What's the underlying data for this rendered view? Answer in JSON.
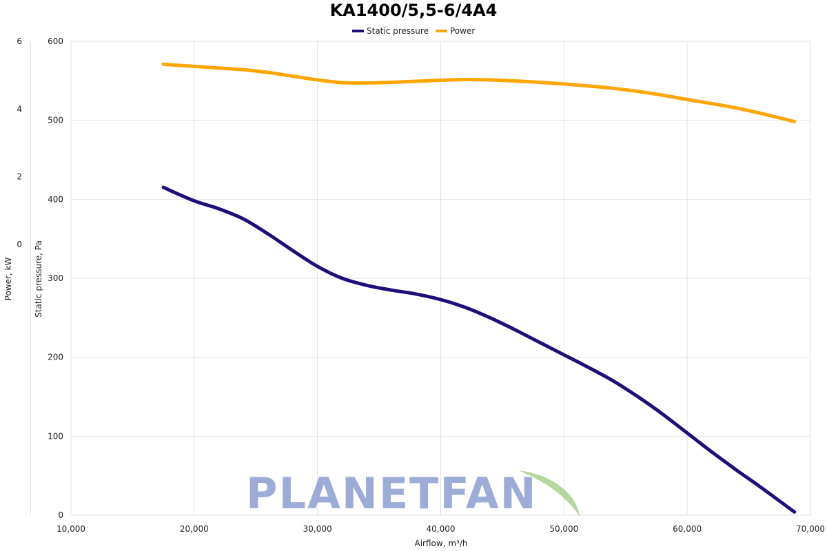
{
  "chart_data": {
    "type": "line",
    "title": "KA1400/5,5-6/4A4",
    "xlabel": "Airflow, m³/h",
    "ylabel_left": "Static pressure, Pa",
    "ylabel_right": "Power, kW",
    "xlim": [
      10000,
      70000
    ],
    "ylim_pressure": [
      0,
      600
    ],
    "ylim_power": [
      -8,
      6
    ],
    "x_ticks": [
      10000,
      20000,
      30000,
      40000,
      50000,
      60000,
      70000
    ],
    "x_tick_labels": [
      "10,000",
      "20,000",
      "30,000",
      "40,000",
      "50,000",
      "60,000",
      "70,000"
    ],
    "pressure_ticks": [
      0,
      100,
      200,
      300,
      400,
      500,
      600
    ],
    "pressure_tick_labels": [
      "0",
      "100",
      "200",
      "300",
      "400",
      "500",
      "600"
    ],
    "power_ticks": [
      0,
      2,
      4,
      6
    ],
    "power_tick_labels": [
      "0",
      "2",
      "4",
      "6"
    ],
    "grid": true,
    "legend_position": "top-center",
    "series": [
      {
        "name": "Static pressure",
        "axis": "pressure",
        "color": "#1d0f7a",
        "x": [
          17500,
          20000,
          22000,
          24000,
          26000,
          28000,
          30000,
          32000,
          34000,
          36000,
          38000,
          40000,
          42000,
          44000,
          46000,
          48000,
          50000,
          52000,
          54000,
          56000,
          58000,
          60000,
          62000,
          64000,
          66000,
          68700
        ],
        "y": [
          415,
          398,
          388,
          375,
          356,
          335,
          315,
          300,
          291,
          285,
          280,
          273,
          263,
          250,
          235,
          219,
          203,
          187,
          170,
          150,
          128,
          104,
          80,
          57,
          35,
          4
        ]
      },
      {
        "name": "Power",
        "axis": "power",
        "color": "#ffa500",
        "x": [
          17500,
          20000,
          22000,
          24000,
          26000,
          28000,
          30000,
          32000,
          34000,
          36000,
          38000,
          40000,
          42000,
          44000,
          46000,
          48000,
          50000,
          52000,
          54000,
          56000,
          58000,
          60000,
          62000,
          64000,
          66000,
          68700
        ],
        "y": [
          5.32,
          5.26,
          5.21,
          5.16,
          5.08,
          4.97,
          4.86,
          4.78,
          4.77,
          4.79,
          4.82,
          4.85,
          4.87,
          4.86,
          4.83,
          4.79,
          4.74,
          4.68,
          4.61,
          4.52,
          4.41,
          4.28,
          4.16,
          4.03,
          3.87,
          3.63
        ]
      }
    ]
  },
  "watermark": {
    "text": "PLANETFAN",
    "text_color": "#8c9ed0",
    "leaf_color": "#a8d08d"
  }
}
